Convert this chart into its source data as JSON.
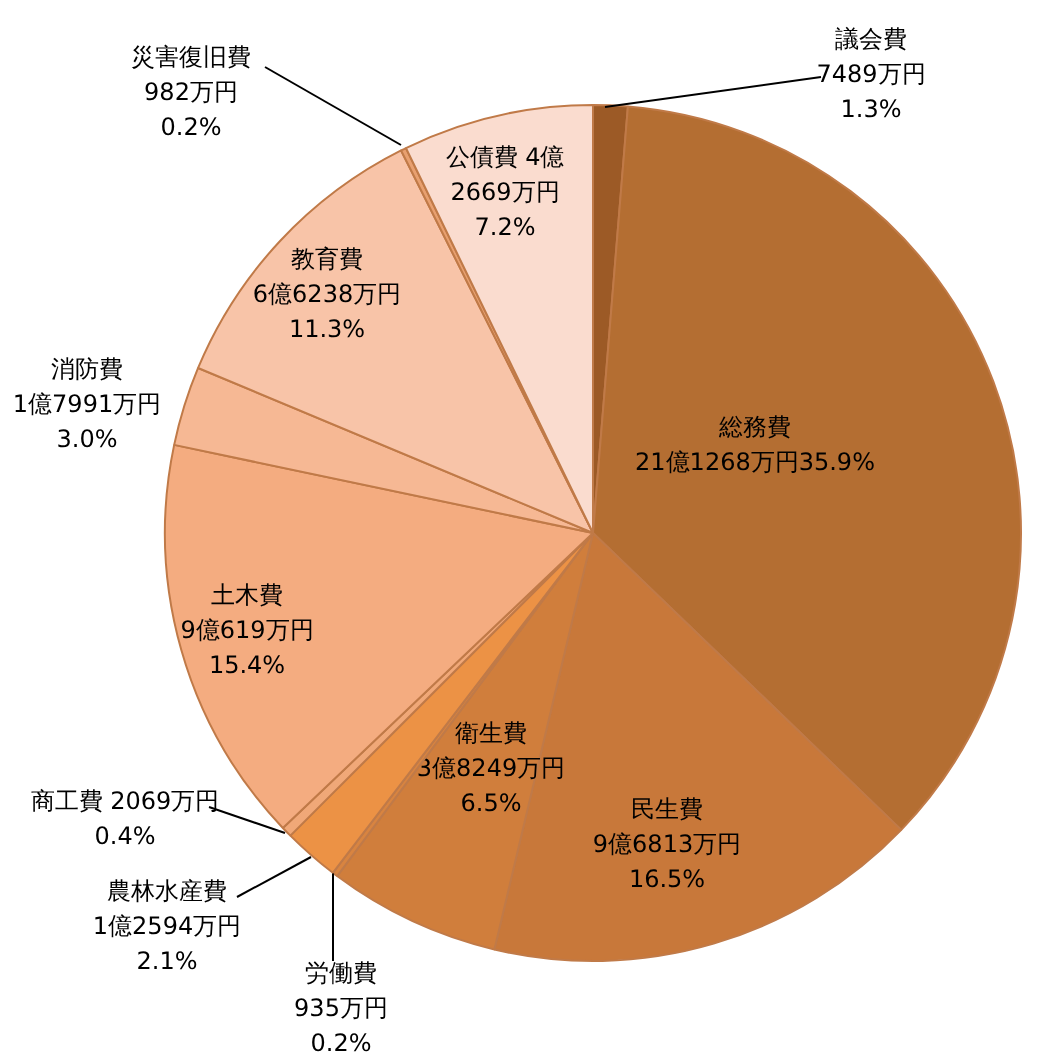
{
  "chart_data": {
    "type": "pie",
    "categories": [
      "議会費",
      "総務費",
      "民生費",
      "衛生費",
      "労働費",
      "農林水産費",
      "商工費",
      "土木費",
      "消防費",
      "教育費",
      "災害復旧費",
      "公債費"
    ],
    "values": [
      1.3,
      35.9,
      16.5,
      6.5,
      0.2,
      2.1,
      0.4,
      15.4,
      3.0,
      11.3,
      0.2,
      7.2
    ],
    "colors": [
      "#9c5a26",
      "#b46e32",
      "#c8783a",
      "#d07e3c",
      "#d88440",
      "#ec9245",
      "#f0a878",
      "#f4ac80",
      "#f6b894",
      "#f8c4a8",
      "#e8a070",
      "#fadccf"
    ],
    "value_labels": [
      "7489万円\n1.3%",
      "21億1268万円35.9%",
      "9億6813万円\n16.5%",
      "3億8249万円\n6.5%",
      "935万円\n0.2%",
      "1億2594万円\n2.1%",
      "2069万円\n0.4%",
      "9億619万円\n15.4%",
      "1億7991万円\n3.0%",
      "6億6238万円\n11.3%",
      "982万円\n0.2%",
      "4億\n2669万円\n7.2%"
    ]
  }
}
